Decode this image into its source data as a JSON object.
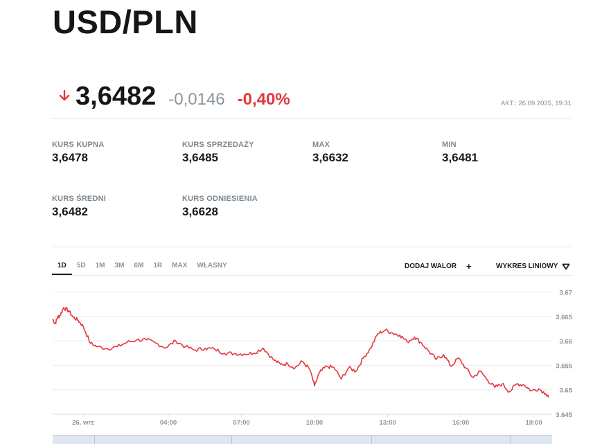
{
  "header": {
    "title": "USD/PLN"
  },
  "quote": {
    "price": "3,6482",
    "change": "-0,0146",
    "change_pct": "-0,40%",
    "updated": "AKT.: 26.09.2025, 19:31",
    "direction": "down",
    "down_color": "#e4373d"
  },
  "stats": [
    {
      "label": "KURS KUPNA",
      "value": "3,6478"
    },
    {
      "label": "KURS SPRZEDAŻY",
      "value": "3,6485"
    },
    {
      "label": "MAX",
      "value": "3,6632"
    },
    {
      "label": "MIN",
      "value": "3,6481"
    },
    {
      "label": "KURS ŚREDNI",
      "value": "3,6482"
    },
    {
      "label": "KURS ODNIESIENIA",
      "value": "3,6628"
    }
  ],
  "ranges": [
    "1D",
    "5D",
    "1M",
    "3M",
    "6M",
    "1R",
    "MAX",
    "WŁASNY"
  ],
  "active_range": "1D",
  "toolbar": {
    "add_label": "DODAJ WALOR",
    "add_icon": "plus-icon",
    "chart_type_label": "WYKRES LINIOWY",
    "chart_type_icon": "triangle-down-icon"
  },
  "chart_data": {
    "type": "line",
    "line_color": "#e4373d",
    "grid": true,
    "x_ticks": [
      "26. wrz",
      "04:00",
      "07:00",
      "10:00",
      "13:00",
      "16:00",
      "19:00"
    ],
    "x_tick_hours": [
      0.5,
      4,
      7,
      10,
      13,
      16,
      19
    ],
    "x_range_hours": [
      -0.75,
      19.75
    ],
    "y_ticks": [
      "3.67",
      "3.665",
      "3.66",
      "3.655",
      "3.65",
      "3.645"
    ],
    "ylim": [
      3.645,
      3.6705
    ],
    "series": [
      {
        "x": [
          -0.75,
          -0.65,
          -0.55,
          -0.45,
          -0.3,
          -0.1,
          0.1,
          0.3,
          0.5,
          0.8,
          1.1,
          1.5,
          1.9,
          2.3,
          2.7,
          3.1,
          3.5,
          3.9,
          4.3,
          4.7,
          5.1,
          5.5,
          5.9,
          6.3,
          6.7,
          7.1,
          7.5,
          7.9,
          8.3,
          8.6,
          8.9,
          9.2,
          9.5,
          9.8,
          10.0,
          10.2,
          10.5,
          10.8,
          11.1,
          11.4,
          11.7,
          12.0,
          12.3,
          12.6,
          12.9,
          13.2,
          13.5,
          13.8,
          14.1,
          14.4,
          14.7,
          15.0,
          15.3,
          15.6,
          15.9,
          16.2,
          16.5,
          16.8,
          17.1,
          17.4,
          17.7,
          18.0,
          18.3,
          18.6,
          18.9,
          19.2,
          19.5,
          19.6
        ],
        "y": [
          3.6645,
          3.6635,
          3.6648,
          3.6652,
          3.6668,
          3.6662,
          3.6648,
          3.6642,
          3.663,
          3.6595,
          3.6588,
          3.6584,
          3.6588,
          3.6597,
          3.6602,
          3.6602,
          3.6595,
          3.6586,
          3.66,
          3.6588,
          3.6581,
          3.6585,
          3.6583,
          3.6575,
          3.6574,
          3.6573,
          3.6575,
          3.6585,
          3.6562,
          3.6552,
          3.6553,
          3.6545,
          3.6558,
          3.6542,
          3.6508,
          3.6535,
          3.6548,
          3.6545,
          3.6522,
          3.6545,
          3.6538,
          3.6565,
          3.6585,
          3.6615,
          3.6622,
          3.6616,
          3.6612,
          3.6598,
          3.6608,
          3.6595,
          3.6578,
          3.6562,
          3.6572,
          3.6548,
          3.6565,
          3.6545,
          3.6525,
          3.6538,
          3.652,
          3.6505,
          3.6512,
          3.6496,
          3.6512,
          3.651,
          3.6498,
          3.6502,
          3.6492,
          3.6484
        ]
      }
    ]
  }
}
